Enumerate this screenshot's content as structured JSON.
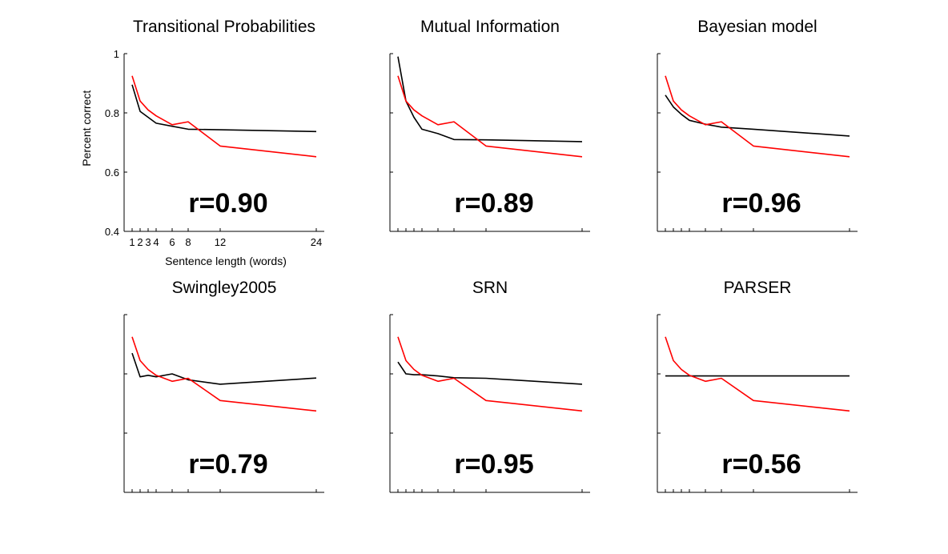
{
  "figure": {
    "colors": {
      "model": "#000000",
      "human": "#ff0000",
      "axis": "#000000"
    }
  },
  "chart_data": [
    {
      "type": "line",
      "title": "Transitional Probabilities",
      "annotation": "r=0.90",
      "xlabel": "Sentence length (words)",
      "ylabel": "Percent correct",
      "x": [
        1,
        2,
        3,
        4,
        6,
        8,
        12,
        24
      ],
      "xticks": [
        1,
        2,
        3,
        4,
        6,
        8,
        12,
        24
      ],
      "xtick_labels": [
        "1",
        "2",
        "3",
        "4",
        "6",
        "8",
        "12",
        "24"
      ],
      "yticks": [
        0.4,
        0.6,
        0.8,
        1
      ],
      "ytick_labels": [
        "0.4",
        "0.6",
        "0.8",
        "1"
      ],
      "xlim": [
        0,
        25
      ],
      "ylim": [
        0.4,
        1
      ],
      "series": [
        {
          "color": "#000000",
          "values": [
            0.895,
            0.805,
            0.785,
            0.765,
            0.755,
            0.745,
            0.743,
            0.737
          ]
        },
        {
          "color": "#ff0000",
          "values": [
            0.925,
            0.84,
            0.81,
            0.79,
            0.76,
            0.77,
            0.688,
            0.652
          ]
        }
      ]
    },
    {
      "type": "line",
      "title": "Mutual Information",
      "annotation": "r=0.89",
      "x": [
        1,
        2,
        3,
        4,
        6,
        8,
        12,
        24
      ],
      "xticks": [
        1,
        2,
        3,
        4,
        6,
        8,
        12,
        24
      ],
      "yticks": [
        0.4,
        0.6,
        0.8,
        1
      ],
      "xlim": [
        0,
        25
      ],
      "ylim": [
        0.4,
        1
      ],
      "series": [
        {
          "color": "#000000",
          "values": [
            0.99,
            0.84,
            0.785,
            0.745,
            0.73,
            0.71,
            0.709,
            0.703
          ]
        },
        {
          "color": "#ff0000",
          "values": [
            0.925,
            0.84,
            0.81,
            0.79,
            0.76,
            0.77,
            0.688,
            0.652
          ]
        }
      ]
    },
    {
      "type": "line",
      "title": "Bayesian model",
      "annotation": "r=0.96",
      "x": [
        1,
        2,
        3,
        4,
        6,
        8,
        12,
        24
      ],
      "xticks": [
        1,
        2,
        3,
        4,
        6,
        8,
        12,
        24
      ],
      "yticks": [
        0.4,
        0.6,
        0.8,
        1
      ],
      "xlim": [
        0,
        25
      ],
      "ylim": [
        0.4,
        1
      ],
      "series": [
        {
          "color": "#000000",
          "values": [
            0.86,
            0.82,
            0.795,
            0.775,
            0.762,
            0.752,
            0.745,
            0.722
          ]
        },
        {
          "color": "#ff0000",
          "values": [
            0.925,
            0.84,
            0.81,
            0.79,
            0.76,
            0.77,
            0.688,
            0.652
          ]
        }
      ]
    },
    {
      "type": "line",
      "title": "Swingley2005",
      "annotation": "r=0.79",
      "x": [
        1,
        2,
        3,
        4,
        6,
        8,
        12,
        24
      ],
      "xticks": [
        1,
        2,
        3,
        4,
        6,
        8,
        12,
        24
      ],
      "yticks": [
        0.4,
        0.6,
        0.8,
        1
      ],
      "xlim": [
        0,
        25
      ],
      "ylim": [
        0.4,
        1
      ],
      "series": [
        {
          "color": "#000000",
          "values": [
            0.87,
            0.79,
            0.795,
            0.79,
            0.8,
            0.78,
            0.765,
            0.786
          ]
        },
        {
          "color": "#ff0000",
          "values": [
            0.925,
            0.845,
            0.815,
            0.795,
            0.775,
            0.785,
            0.71,
            0.675
          ]
        }
      ]
    },
    {
      "type": "line",
      "title": "SRN",
      "annotation": "r=0.95",
      "x": [
        1,
        2,
        3,
        4,
        6,
        8,
        12,
        24
      ],
      "xticks": [
        1,
        2,
        3,
        4,
        6,
        8,
        12,
        24
      ],
      "yticks": [
        0.4,
        0.6,
        0.8,
        1
      ],
      "xlim": [
        0,
        25
      ],
      "ylim": [
        0.4,
        1
      ],
      "series": [
        {
          "color": "#000000",
          "values": [
            0.84,
            0.8,
            0.797,
            0.797,
            0.793,
            0.787,
            0.785,
            0.765
          ]
        },
        {
          "color": "#ff0000",
          "values": [
            0.925,
            0.845,
            0.815,
            0.795,
            0.775,
            0.785,
            0.71,
            0.675
          ]
        }
      ]
    },
    {
      "type": "line",
      "title": "PARSER",
      "annotation": "r=0.56",
      "x": [
        1,
        2,
        3,
        4,
        6,
        8,
        12,
        24
      ],
      "xticks": [
        1,
        2,
        3,
        4,
        6,
        8,
        12,
        24
      ],
      "yticks": [
        0.4,
        0.6,
        0.8,
        1
      ],
      "xlim": [
        0,
        25
      ],
      "ylim": [
        0.4,
        1
      ],
      "series": [
        {
          "color": "#000000",
          "values": [
            0.793,
            0.793,
            0.793,
            0.793,
            0.793,
            0.793,
            0.793,
            0.793
          ]
        },
        {
          "color": "#ff0000",
          "values": [
            0.925,
            0.845,
            0.815,
            0.795,
            0.775,
            0.785,
            0.71,
            0.675
          ]
        }
      ]
    }
  ]
}
